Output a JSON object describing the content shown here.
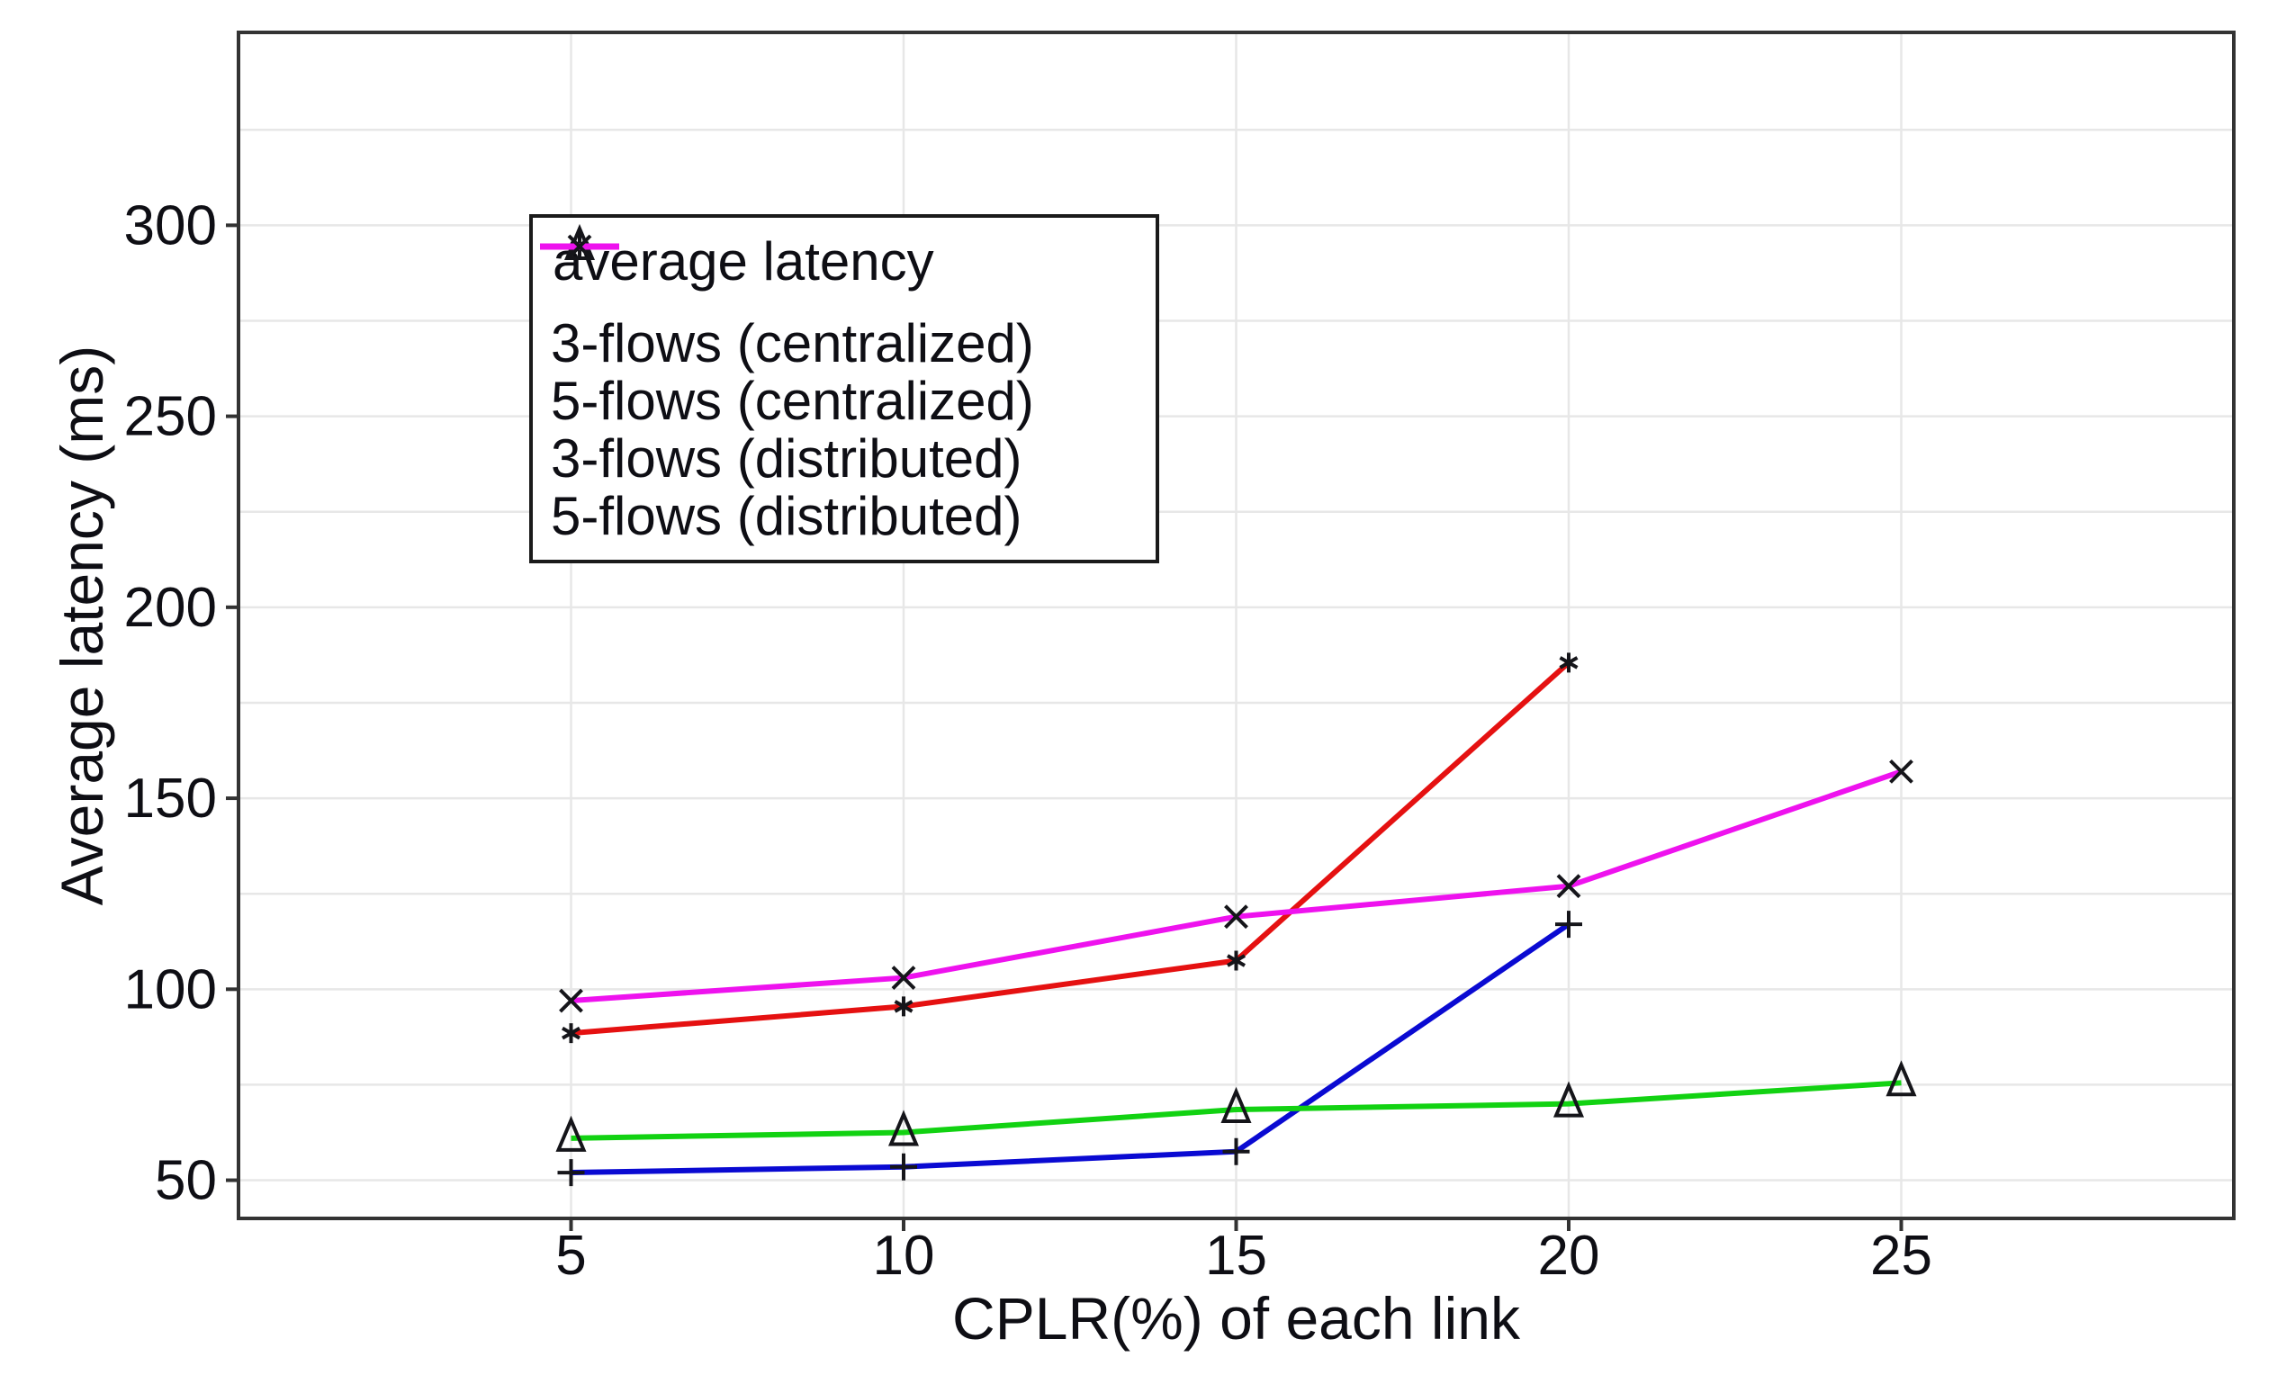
{
  "chart_data": {
    "type": "line",
    "title": "",
    "xlabel": "CPLR(%) of each link",
    "ylabel": "Average latency (ms)",
    "xlim": [
      0,
      30
    ],
    "ylim": [
      40,
      350.5
    ],
    "x_ticks": [
      5,
      10,
      15,
      20,
      25
    ],
    "y_ticks": [
      50,
      100,
      150,
      200,
      250,
      300
    ],
    "y_minor_grid_step": 25,
    "grid": true,
    "legend": {
      "title": "average latency",
      "position": "top-left"
    },
    "series": [
      {
        "name": "3-flows (centralized)",
        "color": "#0a0ad2",
        "marker": "plus",
        "x": [
          5,
          10,
          15,
          20
        ],
        "y": [
          52,
          53.5,
          57.5,
          117
        ]
      },
      {
        "name": "5-flows (centralized)",
        "color": "#e51111",
        "marker": "asterisk",
        "x": [
          5,
          10,
          15,
          20
        ],
        "y": [
          88.5,
          95.5,
          107.5,
          185.5
        ]
      },
      {
        "name": "3-flows (distributed)",
        "color": "#12d212",
        "marker": "triangle",
        "x": [
          5,
          10,
          15,
          20,
          25
        ],
        "y": [
          61,
          62.5,
          68.5,
          70,
          75.5
        ]
      },
      {
        "name": "5-flows (distributed)",
        "color": "#ee12ee",
        "marker": "cross",
        "x": [
          5,
          10,
          15,
          20,
          25
        ],
        "y": [
          97,
          103,
          119,
          127,
          157
        ]
      }
    ],
    "colors": {
      "background": "#ffffff",
      "grid": "#e7e7e7",
      "frame": "#333333",
      "tick": "#333333",
      "text": "#0e0e14",
      "marker": "#15151a"
    }
  }
}
